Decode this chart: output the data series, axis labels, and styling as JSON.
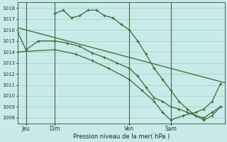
{
  "bg_color": "#c8eae8",
  "grid_color": "#a0cccc",
  "line_color": "#2d6e2d",
  "xlabel": "Pression niveau de la mer( hPa )",
  "ylim": [
    1007.5,
    1018.5
  ],
  "yticks": [
    1008,
    1009,
    1010,
    1011,
    1012,
    1013,
    1014,
    1015,
    1016,
    1017,
    1018
  ],
  "xlim": [
    0,
    100
  ],
  "xtick_labels": [
    "Jeu",
    "Dim",
    "Ven",
    "Sam"
  ],
  "xtick_positions": [
    4,
    18,
    54,
    74
  ],
  "vline_positions": [
    4,
    18,
    54,
    74
  ],
  "line1_smooth": {
    "x": [
      0,
      100
    ],
    "y": [
      1016.2,
      1011.2
    ]
  },
  "line2_wavy": {
    "x": [
      0,
      4,
      10,
      18,
      24,
      30,
      36,
      42,
      48,
      54,
      58,
      62,
      66,
      70,
      74,
      78,
      82,
      86,
      90,
      94,
      98
    ],
    "y": [
      1015.8,
      1014.2,
      1015.0,
      1015.0,
      1014.8,
      1014.5,
      1013.9,
      1013.5,
      1013.0,
      1012.5,
      1011.8,
      1010.8,
      1009.8,
      1009.5,
      1009.0,
      1008.8,
      1008.5,
      1008.2,
      1008.0,
      1008.5,
      1009.0
    ]
  },
  "line3_upper": {
    "x": [
      18,
      22,
      26,
      30,
      34,
      38,
      42,
      46,
      50,
      54,
      58,
      62,
      66,
      70,
      74,
      78,
      82,
      86,
      90,
      94,
      98
    ],
    "y": [
      1017.5,
      1017.8,
      1017.1,
      1017.3,
      1017.8,
      1017.8,
      1017.3,
      1017.1,
      1016.5,
      1016.0,
      1015.0,
      1013.8,
      1012.5,
      1011.5,
      1010.5,
      1009.5,
      1008.8,
      1008.2,
      1007.8,
      1008.2,
      1009.0
    ]
  },
  "line4_lower": {
    "x": [
      0,
      18,
      28,
      36,
      44,
      54,
      60,
      66,
      70,
      74,
      80,
      86,
      90,
      94,
      98
    ],
    "y": [
      1014.0,
      1014.2,
      1013.8,
      1013.2,
      1012.5,
      1011.5,
      1010.5,
      1009.5,
      1008.5,
      1007.8,
      1008.2,
      1008.5,
      1008.8,
      1009.5,
      1011.1
    ]
  }
}
